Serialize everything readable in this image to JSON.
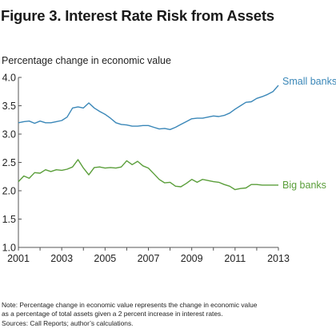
{
  "title": "Figure 3. Interest Rate Risk from Assets",
  "y_caption": "Percentage change in economic value",
  "note_lines": [
    "Note: Percentage change in economic value represents the change in economic value",
    "as a percentage of total assets given a 2 percent increase in interest rates.",
    "Sources: Call Reports; author’s calculations."
  ],
  "colors": {
    "small_banks": "#3a87b8",
    "big_banks": "#5a9e3a",
    "axis": "#555555",
    "grid": "#e6e6e6"
  },
  "chart_data": {
    "type": "line",
    "title": "Figure 3. Interest Rate Risk from Assets",
    "ylabel": "Percentage change in economic value",
    "xlabel": "",
    "xlim": [
      2001,
      2013
    ],
    "ylim": [
      1.0,
      4.0
    ],
    "x_ticks": [
      2001,
      2003,
      2005,
      2007,
      2009,
      2011,
      2013
    ],
    "y_ticks": [
      1.0,
      1.5,
      2.0,
      2.5,
      3.0,
      3.5,
      4.0
    ],
    "y_tick_labels": [
      "1.0",
      "1.5",
      "2.0",
      "2.5",
      "3.0",
      "3.5",
      "4.0"
    ],
    "grid": false,
    "legend": "inline labels at right end of lines",
    "series": [
      {
        "name": "Small banks",
        "color": "#3a87b8",
        "x": [
          2001.0,
          2001.25,
          2001.5,
          2001.75,
          2002.0,
          2002.25,
          2002.5,
          2002.75,
          2003.0,
          2003.25,
          2003.5,
          2003.75,
          2004.0,
          2004.25,
          2004.5,
          2004.75,
          2005.0,
          2005.25,
          2005.5,
          2005.75,
          2006.0,
          2006.25,
          2006.5,
          2006.75,
          2007.0,
          2007.25,
          2007.5,
          2007.75,
          2008.0,
          2008.25,
          2008.5,
          2008.75,
          2009.0,
          2009.25,
          2009.5,
          2009.75,
          2010.0,
          2010.25,
          2010.5,
          2010.75,
          2011.0,
          2011.25,
          2011.5,
          2011.75,
          2012.0,
          2012.25,
          2012.5,
          2012.75,
          2013.0
        ],
        "values": [
          3.2,
          3.22,
          3.23,
          3.19,
          3.23,
          3.2,
          3.2,
          3.22,
          3.24,
          3.3,
          3.46,
          3.48,
          3.46,
          3.55,
          3.46,
          3.4,
          3.35,
          3.28,
          3.2,
          3.17,
          3.16,
          3.14,
          3.14,
          3.15,
          3.15,
          3.12,
          3.09,
          3.1,
          3.08,
          3.12,
          3.17,
          3.22,
          3.27,
          3.28,
          3.28,
          3.3,
          3.32,
          3.31,
          3.33,
          3.37,
          3.44,
          3.5,
          3.56,
          3.57,
          3.63,
          3.66,
          3.7,
          3.75,
          3.86
        ]
      },
      {
        "name": "Big banks",
        "color": "#5a9e3a",
        "x": [
          2001.0,
          2001.25,
          2001.5,
          2001.75,
          2002.0,
          2002.25,
          2002.5,
          2002.75,
          2003.0,
          2003.25,
          2003.5,
          2003.75,
          2004.0,
          2004.25,
          2004.5,
          2004.75,
          2005.0,
          2005.25,
          2005.5,
          2005.75,
          2006.0,
          2006.25,
          2006.5,
          2006.75,
          2007.0,
          2007.25,
          2007.5,
          2007.75,
          2008.0,
          2008.25,
          2008.5,
          2008.75,
          2009.0,
          2009.25,
          2009.5,
          2009.75,
          2010.0,
          2010.25,
          2010.5,
          2010.75,
          2011.0,
          2011.25,
          2011.5,
          2011.75,
          2012.0,
          2012.25,
          2012.5,
          2012.75,
          2013.0
        ],
        "values": [
          2.16,
          2.26,
          2.22,
          2.32,
          2.31,
          2.37,
          2.34,
          2.37,
          2.36,
          2.38,
          2.42,
          2.55,
          2.4,
          2.28,
          2.41,
          2.42,
          2.4,
          2.41,
          2.4,
          2.42,
          2.53,
          2.46,
          2.52,
          2.44,
          2.4,
          2.3,
          2.2,
          2.14,
          2.15,
          2.08,
          2.07,
          2.13,
          2.2,
          2.15,
          2.2,
          2.18,
          2.16,
          2.15,
          2.11,
          2.08,
          2.02,
          2.04,
          2.05,
          2.11,
          2.11,
          2.1,
          2.1,
          2.1,
          2.1
        ]
      }
    ]
  }
}
